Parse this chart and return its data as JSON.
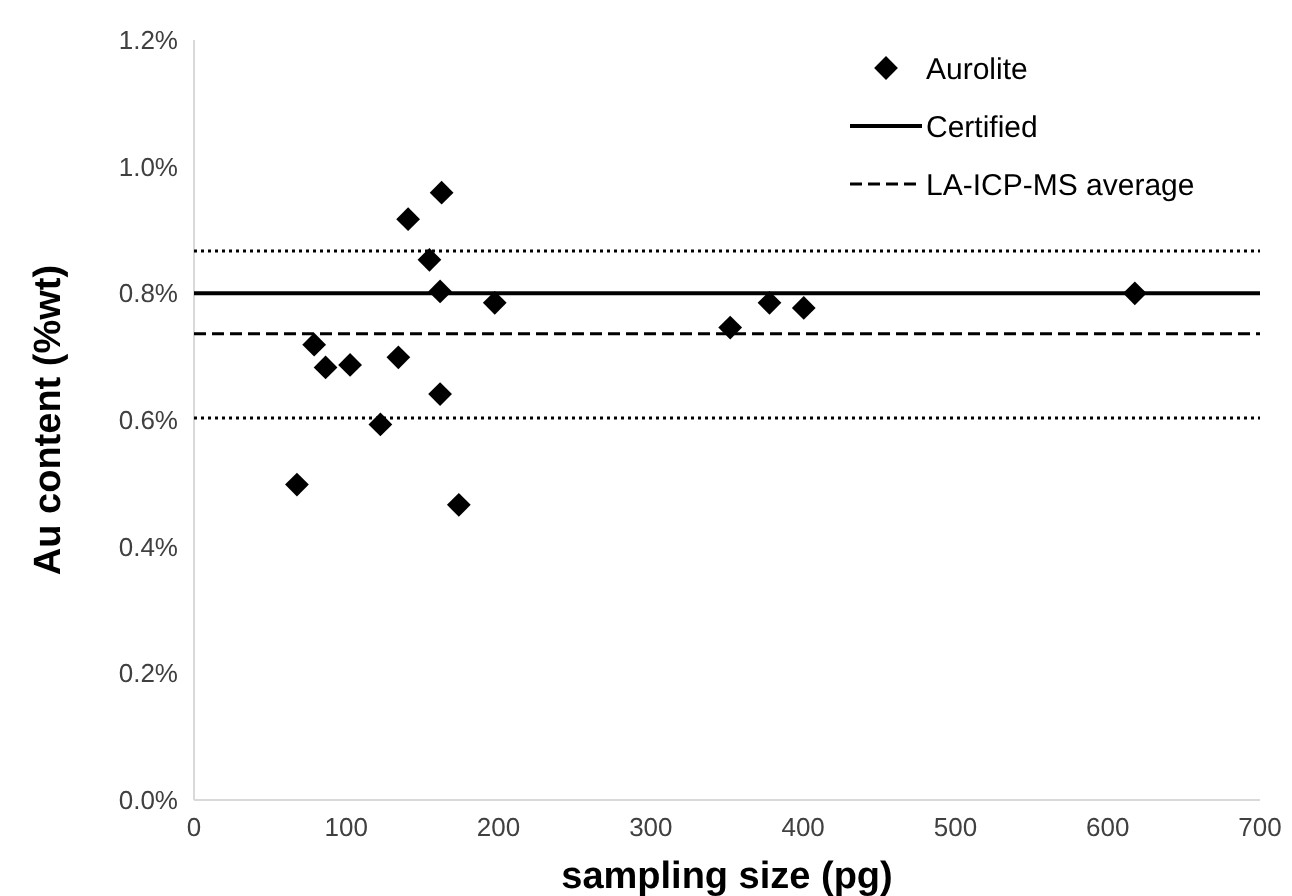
{
  "chart_data": {
    "type": "scatter",
    "xlabel": "sampling size (pg)",
    "ylabel": "Au content (%wt)",
    "x": [
      67.6,
      78.9,
      86.4,
      102.5,
      122.4,
      134.2,
      140.6,
      154.6,
      162.6,
      161.6,
      161.6,
      173.9,
      197.5,
      352.1,
      377.9,
      400.4,
      617.8
    ],
    "series": [
      {
        "name": "Aurolite",
        "color": "#000000",
        "values": [
          0.498,
          0.719,
          0.683,
          0.687,
          0.593,
          0.699,
          0.917,
          0.853,
          0.959,
          0.803,
          0.641,
          0.466,
          0.785,
          0.746,
          0.785,
          0.777,
          0.8
        ]
      }
    ],
    "marker": "diamond",
    "xlim": [
      0,
      700
    ],
    "xticks": [
      0,
      100,
      200,
      300,
      400,
      500,
      600,
      700
    ],
    "ylim": [
      0,
      1.2
    ],
    "yticks": [
      {
        "value": 0,
        "label": "0.0%"
      },
      {
        "value": 0.2,
        "label": "0.2%"
      },
      {
        "value": 0.4,
        "label": "0.4%"
      },
      {
        "value": 0.6,
        "label": "0.6%"
      },
      {
        "value": 0.8,
        "label": "0.8%"
      },
      {
        "value": 1.0,
        "label": "1.0%"
      },
      {
        "value": 1.2,
        "label": "1.2%"
      }
    ],
    "ref_lines": [
      {
        "axis": "y",
        "value": 0.8,
        "label": "Certified",
        "color": "#000000",
        "line_style": "solid"
      },
      {
        "axis": "y",
        "value": 0.736,
        "label": "LA-ICP-MS average",
        "color": "#000000",
        "line_style": "dashed"
      },
      {
        "axis": "y",
        "value": 0.867,
        "color": "#000000",
        "line_style": "dotted"
      },
      {
        "axis": "y",
        "value": 0.603,
        "color": "#000000",
        "line_style": "dotted"
      }
    ],
    "grid": false,
    "legend": "top right"
  }
}
